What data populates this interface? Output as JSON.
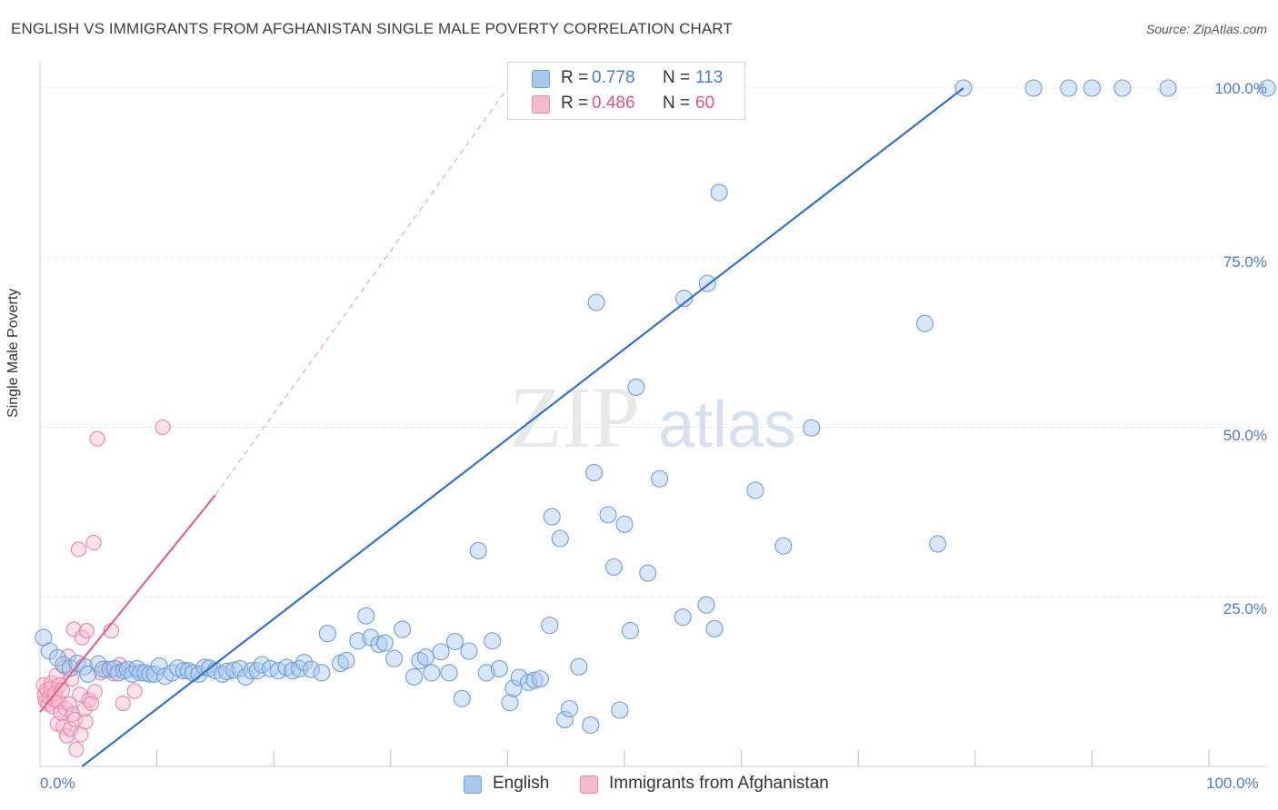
{
  "header": {
    "title": "ENGLISH VS IMMIGRANTS FROM AFGHANISTAN SINGLE MALE POVERTY CORRELATION CHART",
    "source": "Source: ZipAtlas.com"
  },
  "legend": {
    "english": {
      "r_label": "R =",
      "r_value": "0.778",
      "n_label": "N =",
      "n_value": "113"
    },
    "afghan": {
      "r_label": "R =",
      "r_value": "0.486",
      "n_label": "N =",
      "n_value": "60"
    },
    "bottom": {
      "english_label": "English",
      "afghan_label": "Immigrants from Afghanistan"
    }
  },
  "watermark": {
    "zip": "ZIP",
    "atlas": "atlas"
  },
  "axes": {
    "ylabel": "Single Male Poverty",
    "x_ticks": {
      "left": "0.0%",
      "right": "100.0%"
    },
    "y_ticks": [
      "100.0%",
      "75.0%",
      "50.0%",
      "25.0%"
    ]
  },
  "colors": {
    "blue_fill": "#a9c8ee",
    "blue_stroke": "#6f9fd8",
    "blue_line": "#2f72d0",
    "pink_fill": "#f6bccd",
    "pink_stroke": "#ec86a6",
    "pink_line": "#e4638c",
    "grid": "#e6e6e6",
    "tick_label": "#4a7ec8"
  },
  "chart_data": {
    "type": "scatter",
    "title": "ENGLISH VS IMMIGRANTS FROM AFGHANISTAN SINGLE MALE POVERTY CORRELATION CHART",
    "xlabel": "",
    "ylabel": "Single Male Poverty",
    "xlim": [
      0,
      100
    ],
    "ylim": [
      0,
      100
    ],
    "grid": true,
    "legend_position": "top-center",
    "series": [
      {
        "name": "English",
        "r": 0.778,
        "n": 113,
        "trend": {
          "x": [
            3.6,
            79
          ],
          "y": [
            0,
            100
          ]
        },
        "points": [
          [
            0.3,
            19
          ],
          [
            0.8,
            17
          ],
          [
            1.5,
            16
          ],
          [
            2,
            15
          ],
          [
            2.6,
            14.5
          ],
          [
            3.2,
            15.2
          ],
          [
            3.8,
            14.7
          ],
          [
            4.1,
            13.6
          ],
          [
            5,
            15.1
          ],
          [
            5.4,
            14.3
          ],
          [
            6,
            14.3
          ],
          [
            6.4,
            14.4
          ],
          [
            6.7,
            13.8
          ],
          [
            7.2,
            14.1
          ],
          [
            7.5,
            14.3
          ],
          [
            7.9,
            13.6
          ],
          [
            8.3,
            14.4
          ],
          [
            8.6,
            13.8
          ],
          [
            9,
            13.8
          ],
          [
            9.4,
            13.6
          ],
          [
            9.8,
            13.6
          ],
          [
            10.2,
            14.8
          ],
          [
            10.7,
            13.3
          ],
          [
            11.3,
            13.8
          ],
          [
            11.8,
            14.5
          ],
          [
            12.3,
            14.1
          ],
          [
            12.7,
            14.1
          ],
          [
            13.1,
            13.8
          ],
          [
            13.6,
            13.6
          ],
          [
            14.1,
            14.6
          ],
          [
            14.5,
            14.5
          ],
          [
            15,
            14.1
          ],
          [
            15.6,
            13.6
          ],
          [
            16,
            14
          ],
          [
            16.6,
            14.2
          ],
          [
            17.1,
            14.4
          ],
          [
            17.6,
            13.2
          ],
          [
            18.1,
            14.1
          ],
          [
            18.6,
            14.1
          ],
          [
            19,
            15
          ],
          [
            19.7,
            14.4
          ],
          [
            20.4,
            14.1
          ],
          [
            21.1,
            14.6
          ],
          [
            21.6,
            14.1
          ],
          [
            22.2,
            14.4
          ],
          [
            22.6,
            15.3
          ],
          [
            23.2,
            14.3
          ],
          [
            24.1,
            13.8
          ],
          [
            24.6,
            19.6
          ],
          [
            25.7,
            15.2
          ],
          [
            26.2,
            15.6
          ],
          [
            27.2,
            18.5
          ],
          [
            27.9,
            22.2
          ],
          [
            28.3,
            19
          ],
          [
            29,
            18
          ],
          [
            29.5,
            18.2
          ],
          [
            30.3,
            15.9
          ],
          [
            31,
            20.2
          ],
          [
            32,
            13.2
          ],
          [
            32.5,
            15.6
          ],
          [
            33,
            16.1
          ],
          [
            33.5,
            13.8
          ],
          [
            34.3,
            16.9
          ],
          [
            35,
            13.8
          ],
          [
            35.5,
            18.4
          ],
          [
            36.1,
            10
          ],
          [
            36.7,
            17
          ],
          [
            37.5,
            31.8
          ],
          [
            38.2,
            13.8
          ],
          [
            38.7,
            18.5
          ],
          [
            39.3,
            14.4
          ],
          [
            40.2,
            9.4
          ],
          [
            40.5,
            11.5
          ],
          [
            41,
            13.1
          ],
          [
            41.8,
            12.4
          ],
          [
            42.3,
            12.7
          ],
          [
            42.8,
            12.9
          ],
          [
            43.6,
            20.8
          ],
          [
            43.8,
            36.8
          ],
          [
            44.5,
            33.6
          ],
          [
            44.9,
            6.9
          ],
          [
            45.3,
            8.5
          ],
          [
            46.1,
            14.7
          ],
          [
            47.1,
            6.1
          ],
          [
            47.4,
            43.3
          ],
          [
            47.6,
            68.4
          ],
          [
            48.6,
            37.1
          ],
          [
            49.1,
            29.4
          ],
          [
            49.6,
            8.3
          ],
          [
            50,
            35.7
          ],
          [
            50.5,
            20
          ],
          [
            51,
            55.9
          ],
          [
            52,
            28.5
          ],
          [
            53,
            42.4
          ],
          [
            55,
            22
          ],
          [
            55.1,
            69
          ],
          [
            57,
            23.8
          ],
          [
            57.1,
            71.2
          ],
          [
            57.7,
            20.3
          ],
          [
            58.1,
            84.6
          ],
          [
            61.2,
            40.7
          ],
          [
            63.6,
            32.5
          ],
          [
            66,
            49.9
          ],
          [
            75.7,
            65.3
          ],
          [
            76.8,
            32.8
          ],
          [
            79,
            100
          ],
          [
            85,
            100
          ],
          [
            88,
            100
          ],
          [
            90,
            100
          ],
          [
            92.6,
            100
          ],
          [
            96.5,
            100
          ],
          [
            105,
            100
          ]
        ]
      },
      {
        "name": "Immigrants from Afghanistan",
        "r": 0.486,
        "n": 60,
        "trend": {
          "x": [
            0,
            15
          ],
          "y": [
            8,
            40
          ]
        },
        "trend_extension": {
          "x": [
            15,
            40
          ],
          "y": [
            40,
            100
          ]
        },
        "points": [
          [
            0.3,
            12
          ],
          [
            0.4,
            10.5
          ],
          [
            0.5,
            9.6
          ],
          [
            0.6,
            11.3
          ],
          [
            0.7,
            9.2
          ],
          [
            0.8,
            10.2
          ],
          [
            0.9,
            11.5
          ],
          [
            1,
            12.3
          ],
          [
            1.1,
            8.8
          ],
          [
            1.2,
            9.9
          ],
          [
            1.3,
            10.8
          ],
          [
            1.4,
            13.4
          ],
          [
            1.5,
            6.3
          ],
          [
            1.6,
            9.5
          ],
          [
            1.7,
            12
          ],
          [
            1.8,
            7.9
          ],
          [
            1.9,
            11.2
          ],
          [
            2,
            5.8
          ],
          [
            2.1,
            14.7
          ],
          [
            2.2,
            8.5
          ],
          [
            2.3,
            4.5
          ],
          [
            2.4,
            16.2
          ],
          [
            2.5,
            9.2
          ],
          [
            2.6,
            5.5
          ],
          [
            2.7,
            12.9
          ],
          [
            2.8,
            7.7
          ],
          [
            2.9,
            20.2
          ],
          [
            3,
            6.9
          ],
          [
            3.1,
            2.5
          ],
          [
            3.3,
            32
          ],
          [
            3.4,
            10.6
          ],
          [
            3.5,
            4.7
          ],
          [
            3.6,
            19
          ],
          [
            3.8,
            8.4
          ],
          [
            3.9,
            6.6
          ],
          [
            4,
            20
          ],
          [
            4.2,
            9.8
          ],
          [
            4.4,
            9.3
          ],
          [
            4.6,
            33
          ],
          [
            4.7,
            11
          ],
          [
            4.9,
            48.3
          ],
          [
            5.2,
            13.8
          ],
          [
            5.6,
            14.2
          ],
          [
            6.1,
            20
          ],
          [
            6.3,
            13.7
          ],
          [
            6.8,
            15
          ],
          [
            7.1,
            9.3
          ],
          [
            8.1,
            11.1
          ],
          [
            10.5,
            50
          ]
        ]
      }
    ]
  }
}
